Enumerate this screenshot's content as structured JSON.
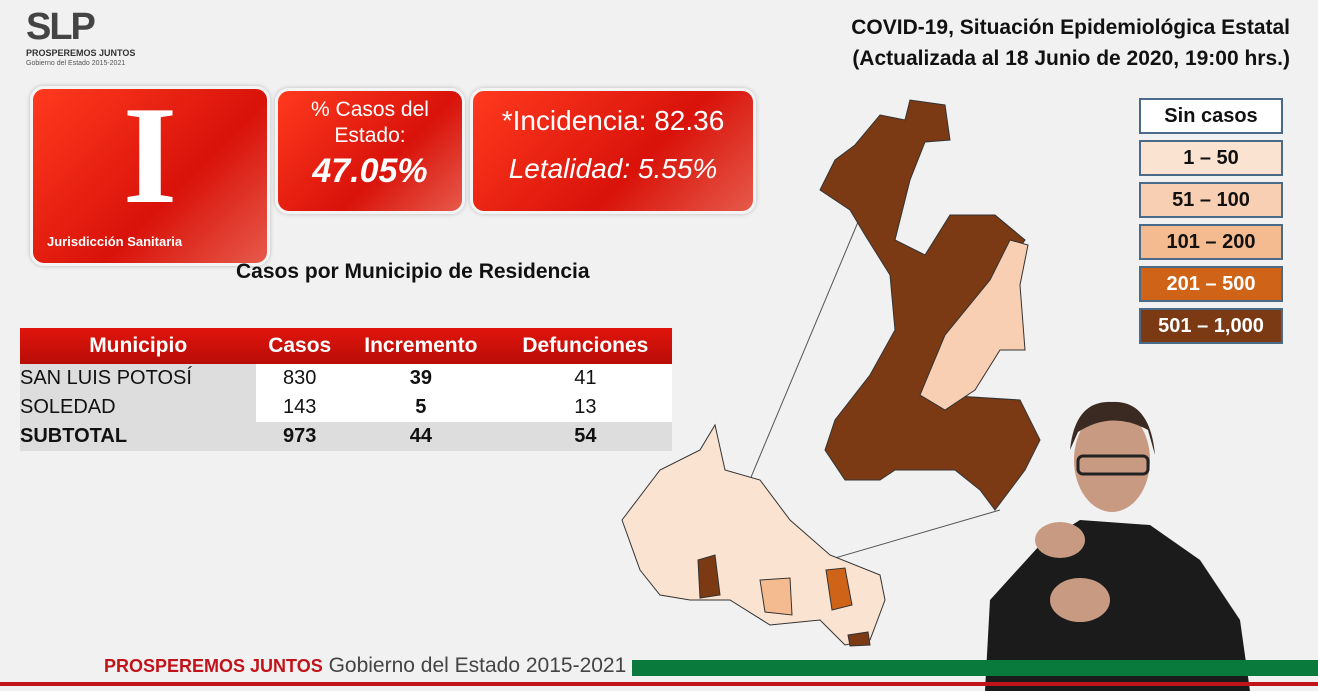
{
  "logo": {
    "mark": "SLP",
    "line1": "PROSPEREMOS JUNTOS",
    "line2": "Gobierno del Estado 2015-2021"
  },
  "header": {
    "title": "COVID-19, Situación Epidemiológica Estatal",
    "subtitle": "(Actualizada al 18 Junio de 2020, 19:00 hrs.)"
  },
  "jurisdiction": {
    "numeral": "I",
    "label": "Jurisdicción Sanitaria"
  },
  "percent_card": {
    "label1": "% Casos del",
    "label2": "Estado:",
    "value": "47.05%"
  },
  "rates_card": {
    "incidence": "*Incidencia: 82.36",
    "lethality": "Letalidad: 5.55%"
  },
  "table": {
    "title": "Casos por Municipio  de Residencia",
    "headers": [
      "Municipio",
      "Casos",
      "Incremento",
      "Defunciones"
    ],
    "rows": [
      [
        "SAN LUIS POTOSÍ",
        "830",
        "39",
        "41"
      ],
      [
        "SOLEDAD",
        "143",
        "5",
        "13"
      ]
    ],
    "subtotal": [
      "SUBTOTAL",
      "973",
      "44",
      "54"
    ]
  },
  "legend": [
    {
      "label": "Sin casos",
      "color": "#ffffff"
    },
    {
      "label": "1 – 50",
      "color": "#fbe3d2"
    },
    {
      "label": "51 – 100",
      "color": "#f8cfb2"
    },
    {
      "label": "101 – 200",
      "color": "#f5bb90"
    },
    {
      "label": "201 – 500",
      "color": "#cf6418"
    },
    {
      "label": "501 – 1,000",
      "color": "#7b3a14"
    }
  ],
  "footer": {
    "brand": "PROSPEREMOS JUNTOS",
    "text": "Gobierno del Estado 2015-2021"
  }
}
